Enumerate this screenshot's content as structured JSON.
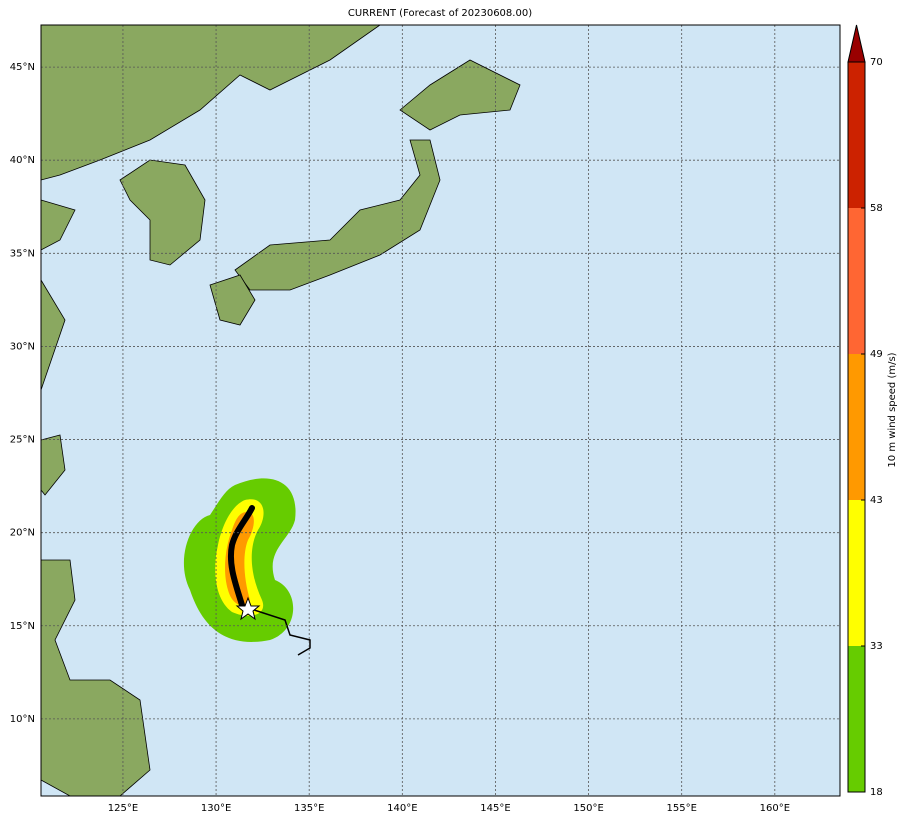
{
  "chart_data": {
    "type": "map",
    "title": "CURRENT (Forecast of 20230608.00)",
    "xlim": [
      120.6,
      163.5
    ],
    "ylim": [
      5.86,
      47.26
    ],
    "xticks": [
      {
        "value": 125,
        "label": "125°E"
      },
      {
        "value": 130,
        "label": "130°E"
      },
      {
        "value": 135,
        "label": "135°E"
      },
      {
        "value": 140,
        "label": "140°E"
      },
      {
        "value": 145,
        "label": "145°E"
      },
      {
        "value": 150,
        "label": "150°E"
      },
      {
        "value": 155,
        "label": "155°E"
      },
      {
        "value": 160,
        "label": "160°E"
      }
    ],
    "yticks": [
      {
        "value": 10,
        "label": "10°N"
      },
      {
        "value": 15,
        "label": "15°N"
      },
      {
        "value": 20,
        "label": "20°N"
      },
      {
        "value": 25,
        "label": "25°N"
      },
      {
        "value": 30,
        "label": "30°N"
      },
      {
        "value": 35,
        "label": "35°N"
      },
      {
        "value": 40,
        "label": "40°N"
      },
      {
        "value": 45,
        "label": "45°N"
      }
    ],
    "grid": true,
    "colorbar": {
      "label": "10 m wind speed (m/s)",
      "ticks": [
        18,
        33,
        43,
        49,
        58,
        70
      ],
      "colors": [
        "#66cc00",
        "#ffff00",
        "#ff9900",
        "#ff6633",
        "#cc2200"
      ],
      "extend_color": "#990000"
    }
  }
}
